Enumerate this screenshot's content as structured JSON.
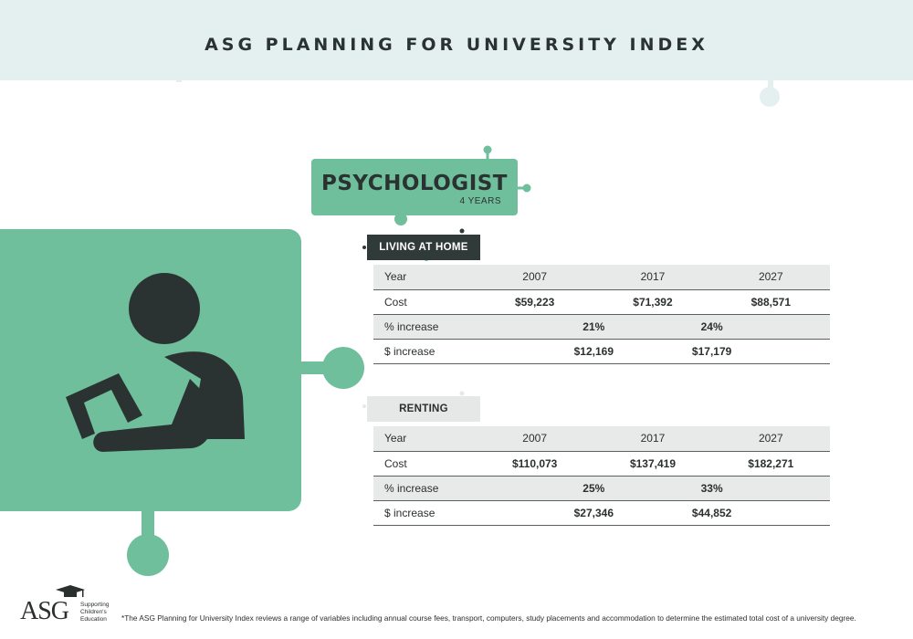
{
  "header": {
    "title": "ASG PLANNING FOR UNIVERSITY INDEX"
  },
  "profession": {
    "title": "PSYCHOLOGIST",
    "duration": "4 YEARS"
  },
  "colors": {
    "accent_green": "#6fbe9c",
    "dark": "#2f3a39",
    "header_band": "#e4f0ef",
    "row_shade": "#e8e9e9"
  },
  "icons": {
    "illustration": "person-reading-tablet-icon",
    "logo_cap": "graduation-cap-icon"
  },
  "living_at_home": {
    "label": "LIVING AT HOME",
    "year_label": "Year",
    "years": [
      "2007",
      "2017",
      "2027"
    ],
    "cost_label": "Cost",
    "costs": [
      "$59,223",
      "$71,392",
      "$88,571"
    ],
    "pct_label": "% increase",
    "pct_increases": [
      "21%",
      "24%"
    ],
    "dollar_label": "$ increase",
    "dollar_increases": [
      "$12,169",
      "$17,179"
    ]
  },
  "renting": {
    "label": "RENTING",
    "year_label": "Year",
    "years": [
      "2007",
      "2017",
      "2027"
    ],
    "cost_label": "Cost",
    "costs": [
      "$110,073",
      "$137,419",
      "$182,271"
    ],
    "pct_label": "% increase",
    "pct_increases": [
      "25%",
      "33%"
    ],
    "dollar_label": "$ increase",
    "dollar_increases": [
      "$27,346",
      "$44,852"
    ]
  },
  "footer": {
    "logo_text": "ASG",
    "logo_tagline": "Supporting Children's Education",
    "footnote": "*The ASG Planning for University Index reviews a range of variables including annual course fees, transport, computers, study placements and accommodation to determine the estimated total cost of a university degree."
  }
}
